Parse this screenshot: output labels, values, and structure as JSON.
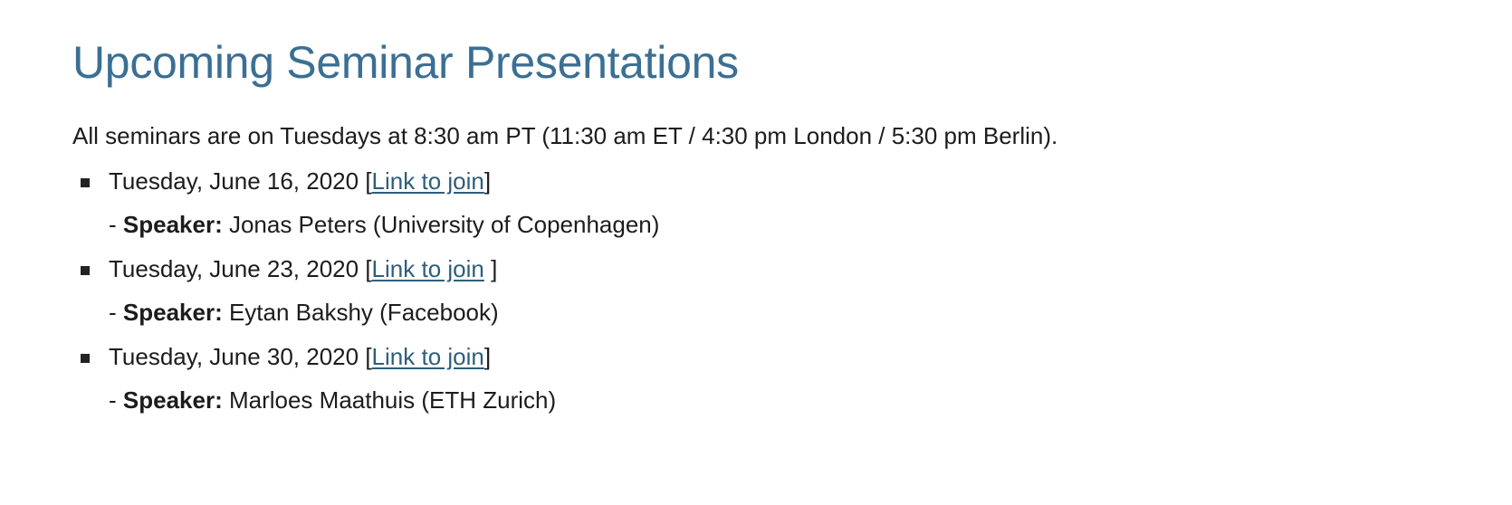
{
  "page": {
    "title": "Upcoming Seminar Presentations",
    "intro": "All seminars are on Tuesdays at 8:30 am PT (11:30 am ET / 4:30 pm London / 5:30 pm Berlin)."
  },
  "seminars": [
    {
      "date": "Tuesday, June 16, 2020",
      "open_bracket": " [",
      "link_text": "Link to join",
      "close_bracket": "]",
      "dash": "- ",
      "speaker_label": "Speaker:",
      "speaker": " Jonas Peters (University of Copenhagen)"
    },
    {
      "date": "Tuesday, June 23, 2020",
      "open_bracket": " [",
      "link_text": "Link to join",
      "close_bracket": " ]",
      "dash": "- ",
      "speaker_label": "Speaker:",
      "speaker": " Eytan Bakshy (Facebook)"
    },
    {
      "date": "Tuesday, June 30, 2020",
      "open_bracket": " [",
      "link_text": "Link to join",
      "close_bracket": "]",
      "dash": "- ",
      "speaker_label": "Speaker:",
      "speaker": " Marloes Maathuis (ETH Zurich)"
    }
  ],
  "colors": {
    "title": "#3b6f93",
    "link": "#2d5e7d",
    "text": "#1c1c1c",
    "bullet": "#222222"
  },
  "icons": {
    "bullet": "square-bullet-icon"
  }
}
